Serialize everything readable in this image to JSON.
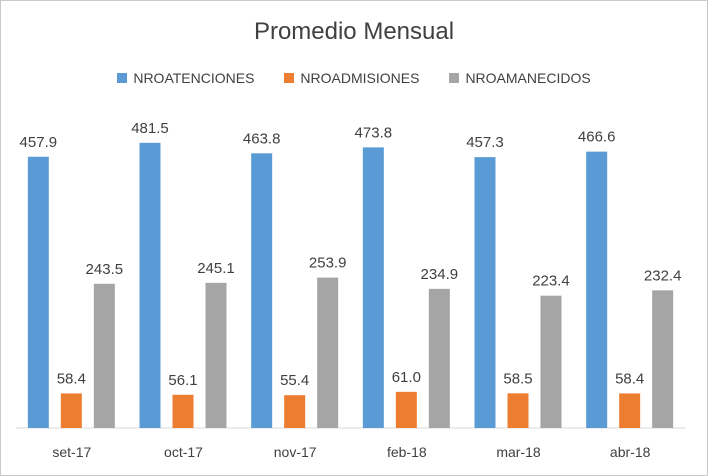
{
  "chart_data": {
    "type": "bar",
    "title": "Promedio Mensual",
    "categories": [
      "set-17",
      "oct-17",
      "nov-17",
      "feb-18",
      "mar-18",
      "abr-18"
    ],
    "series": [
      {
        "name": "NROATENCIONES",
        "color": "#5b9bd5",
        "values": [
          457.9,
          481.5,
          463.8,
          473.8,
          457.3,
          466.6
        ]
      },
      {
        "name": "NROADMISIONES",
        "color": "#ed7d31",
        "values": [
          58.4,
          56.1,
          55.4,
          61.0,
          58.5,
          58.4
        ]
      },
      {
        "name": "NROAMANECIDOS",
        "color": "#a5a5a5",
        "values": [
          243.5,
          245.1,
          253.9,
          234.9,
          223.4,
          232.4
        ]
      }
    ],
    "ylim": [
      0,
      520
    ],
    "grid": false,
    "legend": "top",
    "data_labels": true,
    "label_format": 1
  }
}
